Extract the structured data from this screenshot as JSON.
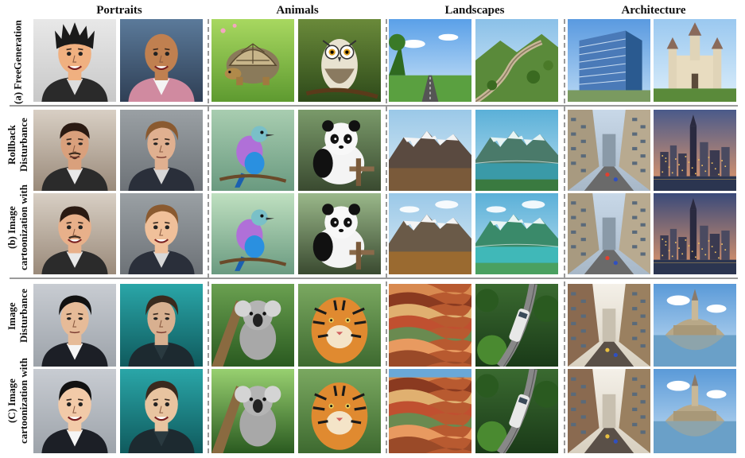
{
  "columns": {
    "portraits": "Portraits",
    "animals": "Animals",
    "landscapes": "Landscapes",
    "architecture": "Architecture"
  },
  "rows": {
    "a": {
      "line1": "(a)  Free",
      "line2": "Generation"
    },
    "b": {
      "line1": "(b)  Image cartoonization with",
      "line2": "Rollback Disturbance"
    },
    "c": {
      "line1": "(C)  Image cartoonization with",
      "line2": "Image Disturbance"
    }
  },
  "tiles": [
    {
      "row": "a",
      "sub": 1,
      "col": "portraits",
      "slot": 1,
      "subject": "cartoon man with spiky black hair"
    },
    {
      "row": "a",
      "sub": 1,
      "col": "portraits",
      "slot": 2,
      "subject": "cartoon bald man in pink suit"
    },
    {
      "row": "a",
      "sub": 1,
      "col": "animals",
      "slot": 1,
      "subject": "cartoon tortoise"
    },
    {
      "row": "a",
      "sub": 1,
      "col": "animals",
      "slot": 2,
      "subject": "cartoon owl on branch"
    },
    {
      "row": "a",
      "sub": 1,
      "col": "landscapes",
      "slot": 1,
      "subject": "road under blue sky"
    },
    {
      "row": "a",
      "sub": 1,
      "col": "landscapes",
      "slot": 2,
      "subject": "great wall on green hills"
    },
    {
      "row": "a",
      "sub": 1,
      "col": "architecture",
      "slot": 1,
      "subject": "glass office building"
    },
    {
      "row": "a",
      "sub": 1,
      "col": "architecture",
      "slot": 2,
      "subject": "fairytale castle"
    },
    {
      "row": "b",
      "sub": 1,
      "col": "portraits",
      "slot": 1,
      "subject": "man with goatee photo"
    },
    {
      "row": "b",
      "sub": 1,
      "col": "portraits",
      "slot": 2,
      "subject": "man with slicked hair photo"
    },
    {
      "row": "b",
      "sub": 1,
      "col": "animals",
      "slot": 1,
      "subject": "lilac-breasted roller photo"
    },
    {
      "row": "b",
      "sub": 1,
      "col": "animals",
      "slot": 2,
      "subject": "panda photo"
    },
    {
      "row": "b",
      "sub": 1,
      "col": "landscapes",
      "slot": 1,
      "subject": "snowy mountains photo"
    },
    {
      "row": "b",
      "sub": 1,
      "col": "landscapes",
      "slot": 2,
      "subject": "mountain lake photo"
    },
    {
      "row": "b",
      "sub": 1,
      "col": "architecture",
      "slot": 1,
      "subject": "city street photo"
    },
    {
      "row": "b",
      "sub": 1,
      "col": "architecture",
      "slot": 2,
      "subject": "city skyline at dusk photo"
    },
    {
      "row": "b",
      "sub": 2,
      "col": "portraits",
      "slot": 1,
      "subject": "man with goatee cartoon"
    },
    {
      "row": "b",
      "sub": 2,
      "col": "portraits",
      "slot": 2,
      "subject": "man with slicked hair cartoon"
    },
    {
      "row": "b",
      "sub": 2,
      "col": "animals",
      "slot": 1,
      "subject": "lilac-breasted roller cartoon"
    },
    {
      "row": "b",
      "sub": 2,
      "col": "animals",
      "slot": 2,
      "subject": "panda cartoon"
    },
    {
      "row": "b",
      "sub": 2,
      "col": "landscapes",
      "slot": 1,
      "subject": "snowy mountains cartoon"
    },
    {
      "row": "b",
      "sub": 2,
      "col": "landscapes",
      "slot": 2,
      "subject": "mountain lake cartoon"
    },
    {
      "row": "b",
      "sub": 2,
      "col": "architecture",
      "slot": 1,
      "subject": "city street cartoon"
    },
    {
      "row": "b",
      "sub": 2,
      "col": "architecture",
      "slot": 2,
      "subject": "city skyline at dusk cartoon"
    },
    {
      "row": "c",
      "sub": 1,
      "col": "portraits",
      "slot": 1,
      "subject": "man in suit photo"
    },
    {
      "row": "c",
      "sub": 1,
      "col": "portraits",
      "slot": 2,
      "subject": "man on teal background photo"
    },
    {
      "row": "c",
      "sub": 1,
      "col": "animals",
      "slot": 1,
      "subject": "koala photo"
    },
    {
      "row": "c",
      "sub": 1,
      "col": "animals",
      "slot": 2,
      "subject": "tiger photo"
    },
    {
      "row": "c",
      "sub": 1,
      "col": "landscapes",
      "slot": 1,
      "subject": "rainbow mountains photo"
    },
    {
      "row": "c",
      "sub": 1,
      "col": "landscapes",
      "slot": 2,
      "subject": "train in jungle photo"
    },
    {
      "row": "c",
      "sub": 1,
      "col": "architecture",
      "slot": 1,
      "subject": "busy city street photo"
    },
    {
      "row": "c",
      "sub": 1,
      "col": "architecture",
      "slot": 2,
      "subject": "island abbey photo"
    },
    {
      "row": "c",
      "sub": 2,
      "col": "portraits",
      "slot": 1,
      "subject": "man in suit cartoon"
    },
    {
      "row": "c",
      "sub": 2,
      "col": "portraits",
      "slot": 2,
      "subject": "man on teal background cartoon"
    },
    {
      "row": "c",
      "sub": 2,
      "col": "animals",
      "slot": 1,
      "subject": "koala cartoon"
    },
    {
      "row": "c",
      "sub": 2,
      "col": "animals",
      "slot": 2,
      "subject": "tiger cartoon"
    },
    {
      "row": "c",
      "sub": 2,
      "col": "landscapes",
      "slot": 1,
      "subject": "rainbow mountains cartoon"
    },
    {
      "row": "c",
      "sub": 2,
      "col": "landscapes",
      "slot": 2,
      "subject": "train in jungle cartoon"
    },
    {
      "row": "c",
      "sub": 2,
      "col": "architecture",
      "slot": 1,
      "subject": "busy city street cartoon"
    },
    {
      "row": "c",
      "sub": 2,
      "col": "architecture",
      "slot": 2,
      "subject": "island abbey cartoon"
    }
  ]
}
